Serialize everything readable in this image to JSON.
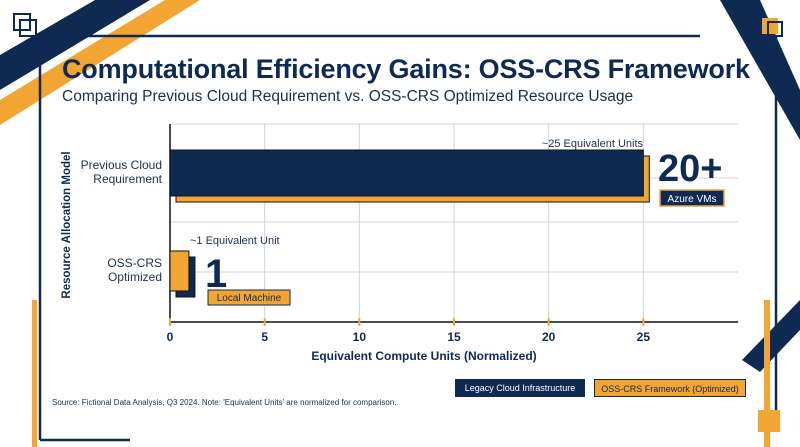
{
  "title": "Computational Efficiency Gains: OSS-CRS Framework",
  "subtitle": "Comparing Previous Cloud Requirement vs. OSS-CRS Optimized Resource Usage",
  "source_note": "Source: Fictional Data Analysis, Q3 2024. Note: 'Equivalent Units' are normalized for comparison.",
  "colors": {
    "navy": "#0f2a52",
    "orange": "#f2a532",
    "grid": "#cfd3d8",
    "text": "#1b2f4f"
  },
  "legend": [
    {
      "label": "Legacy Cloud Infrastructure",
      "color": "#0f2a52"
    },
    {
      "label": "OSS-CRS Framework (Optimized)",
      "color": "#f2a532"
    }
  ],
  "chart_data": {
    "type": "bar",
    "orientation": "horizontal",
    "categories": [
      "Previous Cloud\nRequirement",
      "OSS-CRS\nOptimized"
    ],
    "values": [
      25,
      1
    ],
    "bar_colors": [
      "#0f2a52",
      "#f2a532"
    ],
    "xlabel": "Equivalent Compute Units (Normalized)",
    "ylabel": "Resource Allocation Model",
    "xlim": [
      0,
      30
    ],
    "xticks": [
      0,
      5,
      10,
      15,
      20,
      25
    ],
    "grid": true,
    "legend_position": "bottom-right",
    "annotations": [
      {
        "category": "Previous Cloud\nRequirement",
        "note": "~25 Equivalent Units",
        "big": "20+",
        "badge": "Azure VMs"
      },
      {
        "category": "OSS-CRS\nOptimized",
        "note": "~1 Equivalent Unit",
        "big": "1",
        "badge": "Local Machine"
      }
    ]
  }
}
